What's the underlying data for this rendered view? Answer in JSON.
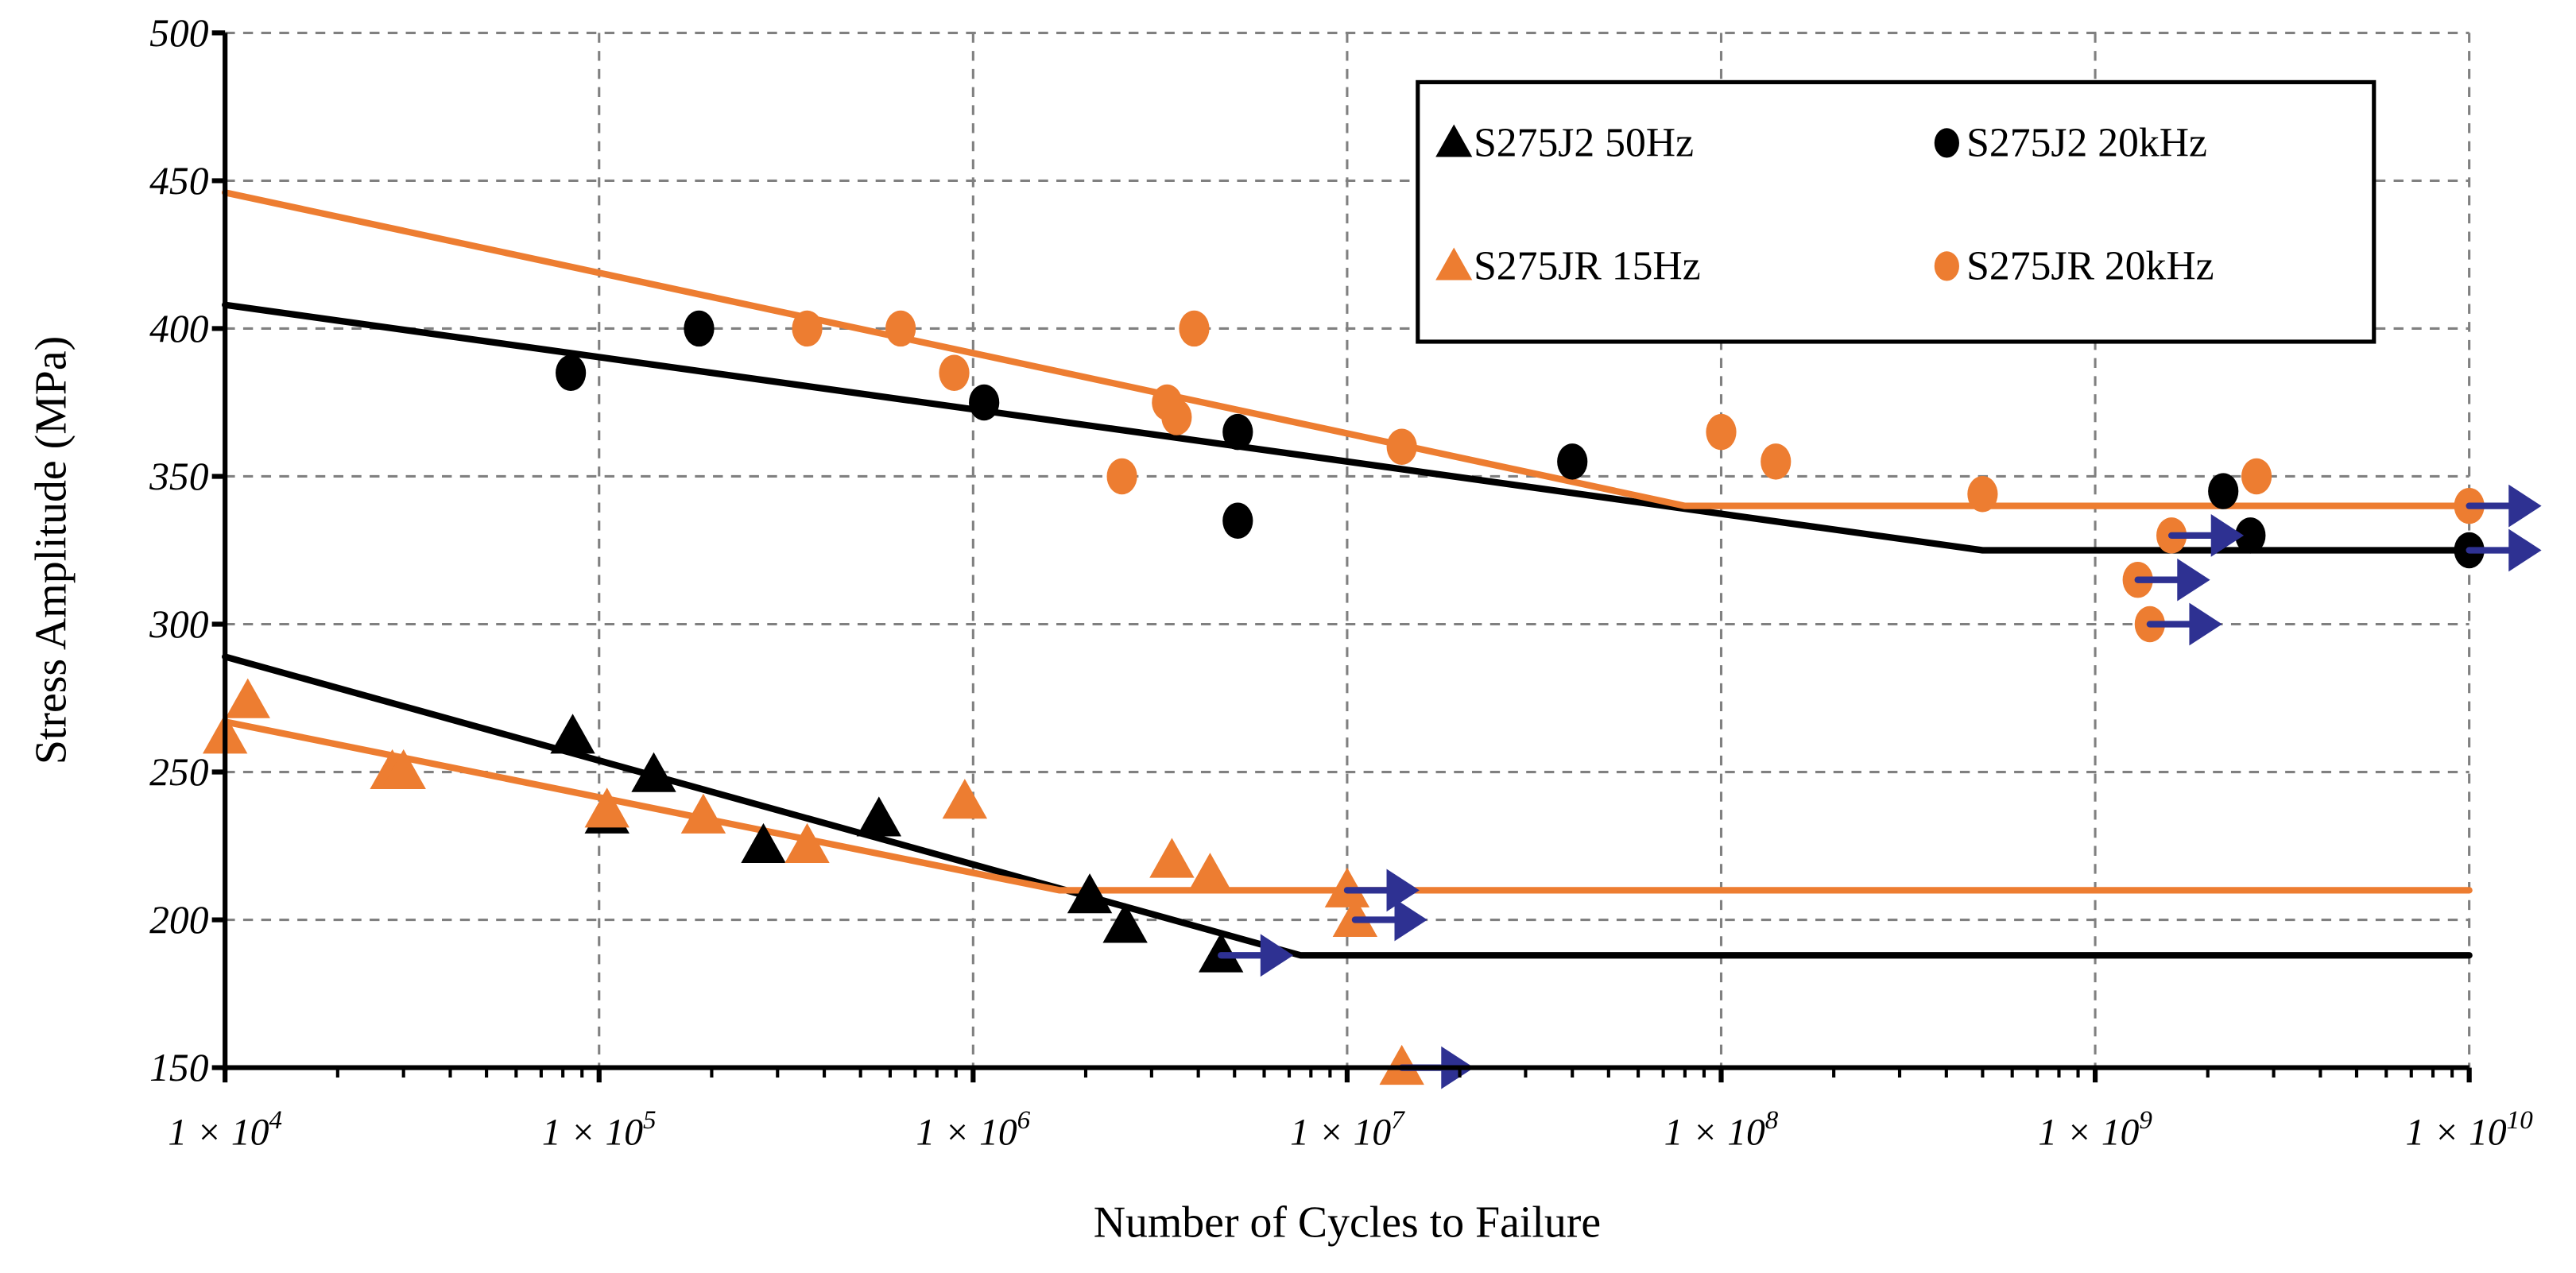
{
  "chart_data": {
    "type": "scatter",
    "title": "",
    "xlabel": "Number of Cycles to Failure",
    "ylabel": "Stress Amplitude (MPa)",
    "xscale": "log",
    "xlim": [
      10000,
      10000000000
    ],
    "ylim": [
      150,
      500
    ],
    "grid": true,
    "legend_position": "top-right",
    "xticks": [
      {
        "value": 10000,
        "base": "1 × 10",
        "exp": "4"
      },
      {
        "value": 100000,
        "base": "1 × 10",
        "exp": "5"
      },
      {
        "value": 1000000,
        "base": "1 × 10",
        "exp": "6"
      },
      {
        "value": 10000000,
        "base": "1 × 10",
        "exp": "7"
      },
      {
        "value": 100000000,
        "base": "1 × 10",
        "exp": "8"
      },
      {
        "value": 1000000000,
        "base": "1 × 10",
        "exp": "9"
      },
      {
        "value": 10000000000,
        "base": "1 × 10",
        "exp": "10"
      }
    ],
    "yticks": [
      150,
      200,
      250,
      300,
      350,
      400,
      450,
      500
    ],
    "runout_color": "#2e3192",
    "series": [
      {
        "name": "S275J2 50Hz",
        "marker": "triangle",
        "color": "#000000",
        "points": [
          [
            85000,
            262
          ],
          [
            105000,
            235
          ],
          [
            140000,
            249
          ],
          [
            275000,
            225
          ],
          [
            560000,
            234
          ],
          [
            2050000,
            208
          ],
          [
            2550000,
            198
          ],
          [
            4600000,
            188,
            "runout"
          ]
        ],
        "fit": [
          [
            10000,
            289
          ],
          [
            7500000,
            188
          ],
          [
            10000000000,
            188
          ]
        ]
      },
      {
        "name": "S275J2 20kHz",
        "marker": "circle",
        "color": "#000000",
        "points": [
          [
            84000,
            385
          ],
          [
            185000,
            400
          ],
          [
            1070000,
            375
          ],
          [
            5100000,
            365
          ],
          [
            5100000,
            335
          ],
          [
            40000000,
            355
          ],
          [
            2200000000,
            345
          ],
          [
            2600000000,
            330
          ],
          [
            10000000000,
            325,
            "runout"
          ]
        ],
        "fit": [
          [
            10000,
            408
          ],
          [
            500000000,
            325
          ],
          [
            10000000000,
            325
          ]
        ]
      },
      {
        "name": "S275JR 15Hz",
        "marker": "triangle",
        "color": "#ed7d31",
        "points": [
          [
            10000,
            262
          ],
          [
            11500,
            274
          ],
          [
            28000,
            250
          ],
          [
            30000,
            250
          ],
          [
            105000,
            237
          ],
          [
            190000,
            235
          ],
          [
            360000,
            225
          ],
          [
            950000,
            240
          ],
          [
            3400000,
            220
          ],
          [
            4300000,
            215
          ],
          [
            10000000,
            210,
            "runout"
          ],
          [
            10500000,
            200,
            "runout"
          ],
          [
            14000000,
            150,
            "runout"
          ]
        ],
        "fit": [
          [
            10000,
            267
          ],
          [
            1700000,
            210
          ],
          [
            10000000000,
            210
          ]
        ]
      },
      {
        "name": "S275JR 20kHz",
        "marker": "circle",
        "color": "#ed7d31",
        "points": [
          [
            360000,
            400
          ],
          [
            640000,
            400
          ],
          [
            890000,
            385
          ],
          [
            3900000,
            400
          ],
          [
            3300000,
            375
          ],
          [
            3500000,
            370
          ],
          [
            2500000,
            350
          ],
          [
            14000000,
            360
          ],
          [
            100000000,
            365
          ],
          [
            140000000,
            355
          ],
          [
            500000000,
            344
          ],
          [
            2700000000,
            350
          ],
          [
            1600000000,
            330,
            "runout"
          ],
          [
            1300000000,
            315,
            "runout"
          ],
          [
            1400000000,
            300,
            "runout"
          ],
          [
            10000000000,
            340,
            "runout"
          ]
        ],
        "fit": [
          [
            10000,
            446
          ],
          [
            80000000,
            340
          ],
          [
            10000000000,
            340
          ]
        ]
      }
    ]
  }
}
